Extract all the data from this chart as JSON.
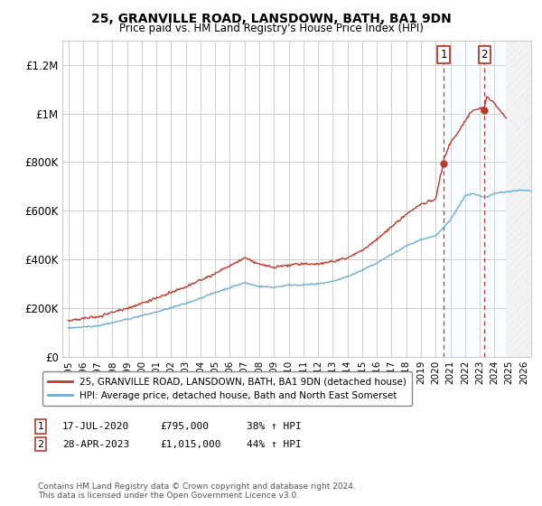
{
  "title": "25, GRANVILLE ROAD, LANSDOWN, BATH, BA1 9DN",
  "subtitle": "Price paid vs. HM Land Registry's House Price Index (HPI)",
  "ylabel_ticks": [
    "£0",
    "£200K",
    "£400K",
    "£600K",
    "£800K",
    "£1M",
    "£1.2M"
  ],
  "ytick_values": [
    0,
    200000,
    400000,
    600000,
    800000,
    1000000,
    1200000
  ],
  "ylim": [
    0,
    1300000
  ],
  "xlim_start": 1994.6,
  "xlim_end": 2026.5,
  "x_ticks": [
    1995,
    1996,
    1997,
    1998,
    1999,
    2000,
    2001,
    2002,
    2003,
    2004,
    2005,
    2006,
    2007,
    2008,
    2009,
    2010,
    2011,
    2012,
    2013,
    2014,
    2015,
    2016,
    2017,
    2018,
    2019,
    2020,
    2021,
    2022,
    2023,
    2024,
    2025,
    2026
  ],
  "sale1_x": 2020.54,
  "sale1_y": 795000,
  "sale2_x": 2023.32,
  "sale2_y": 1015000,
  "hatch_start": 2024.75,
  "hpi_color": "#6baed6",
  "price_color": "#c0392b",
  "hatch_fill_color": "#ddeeff",
  "background_color": "#ffffff",
  "grid_color": "#cccccc",
  "legend_label_red": "25, GRANVILLE ROAD, LANSDOWN, BATH, BA1 9DN (detached house)",
  "legend_label_blue": "HPI: Average price, detached house, Bath and North East Somerset",
  "footnote": "Contains HM Land Registry data © Crown copyright and database right 2024.\nThis data is licensed under the Open Government Licence v3.0."
}
